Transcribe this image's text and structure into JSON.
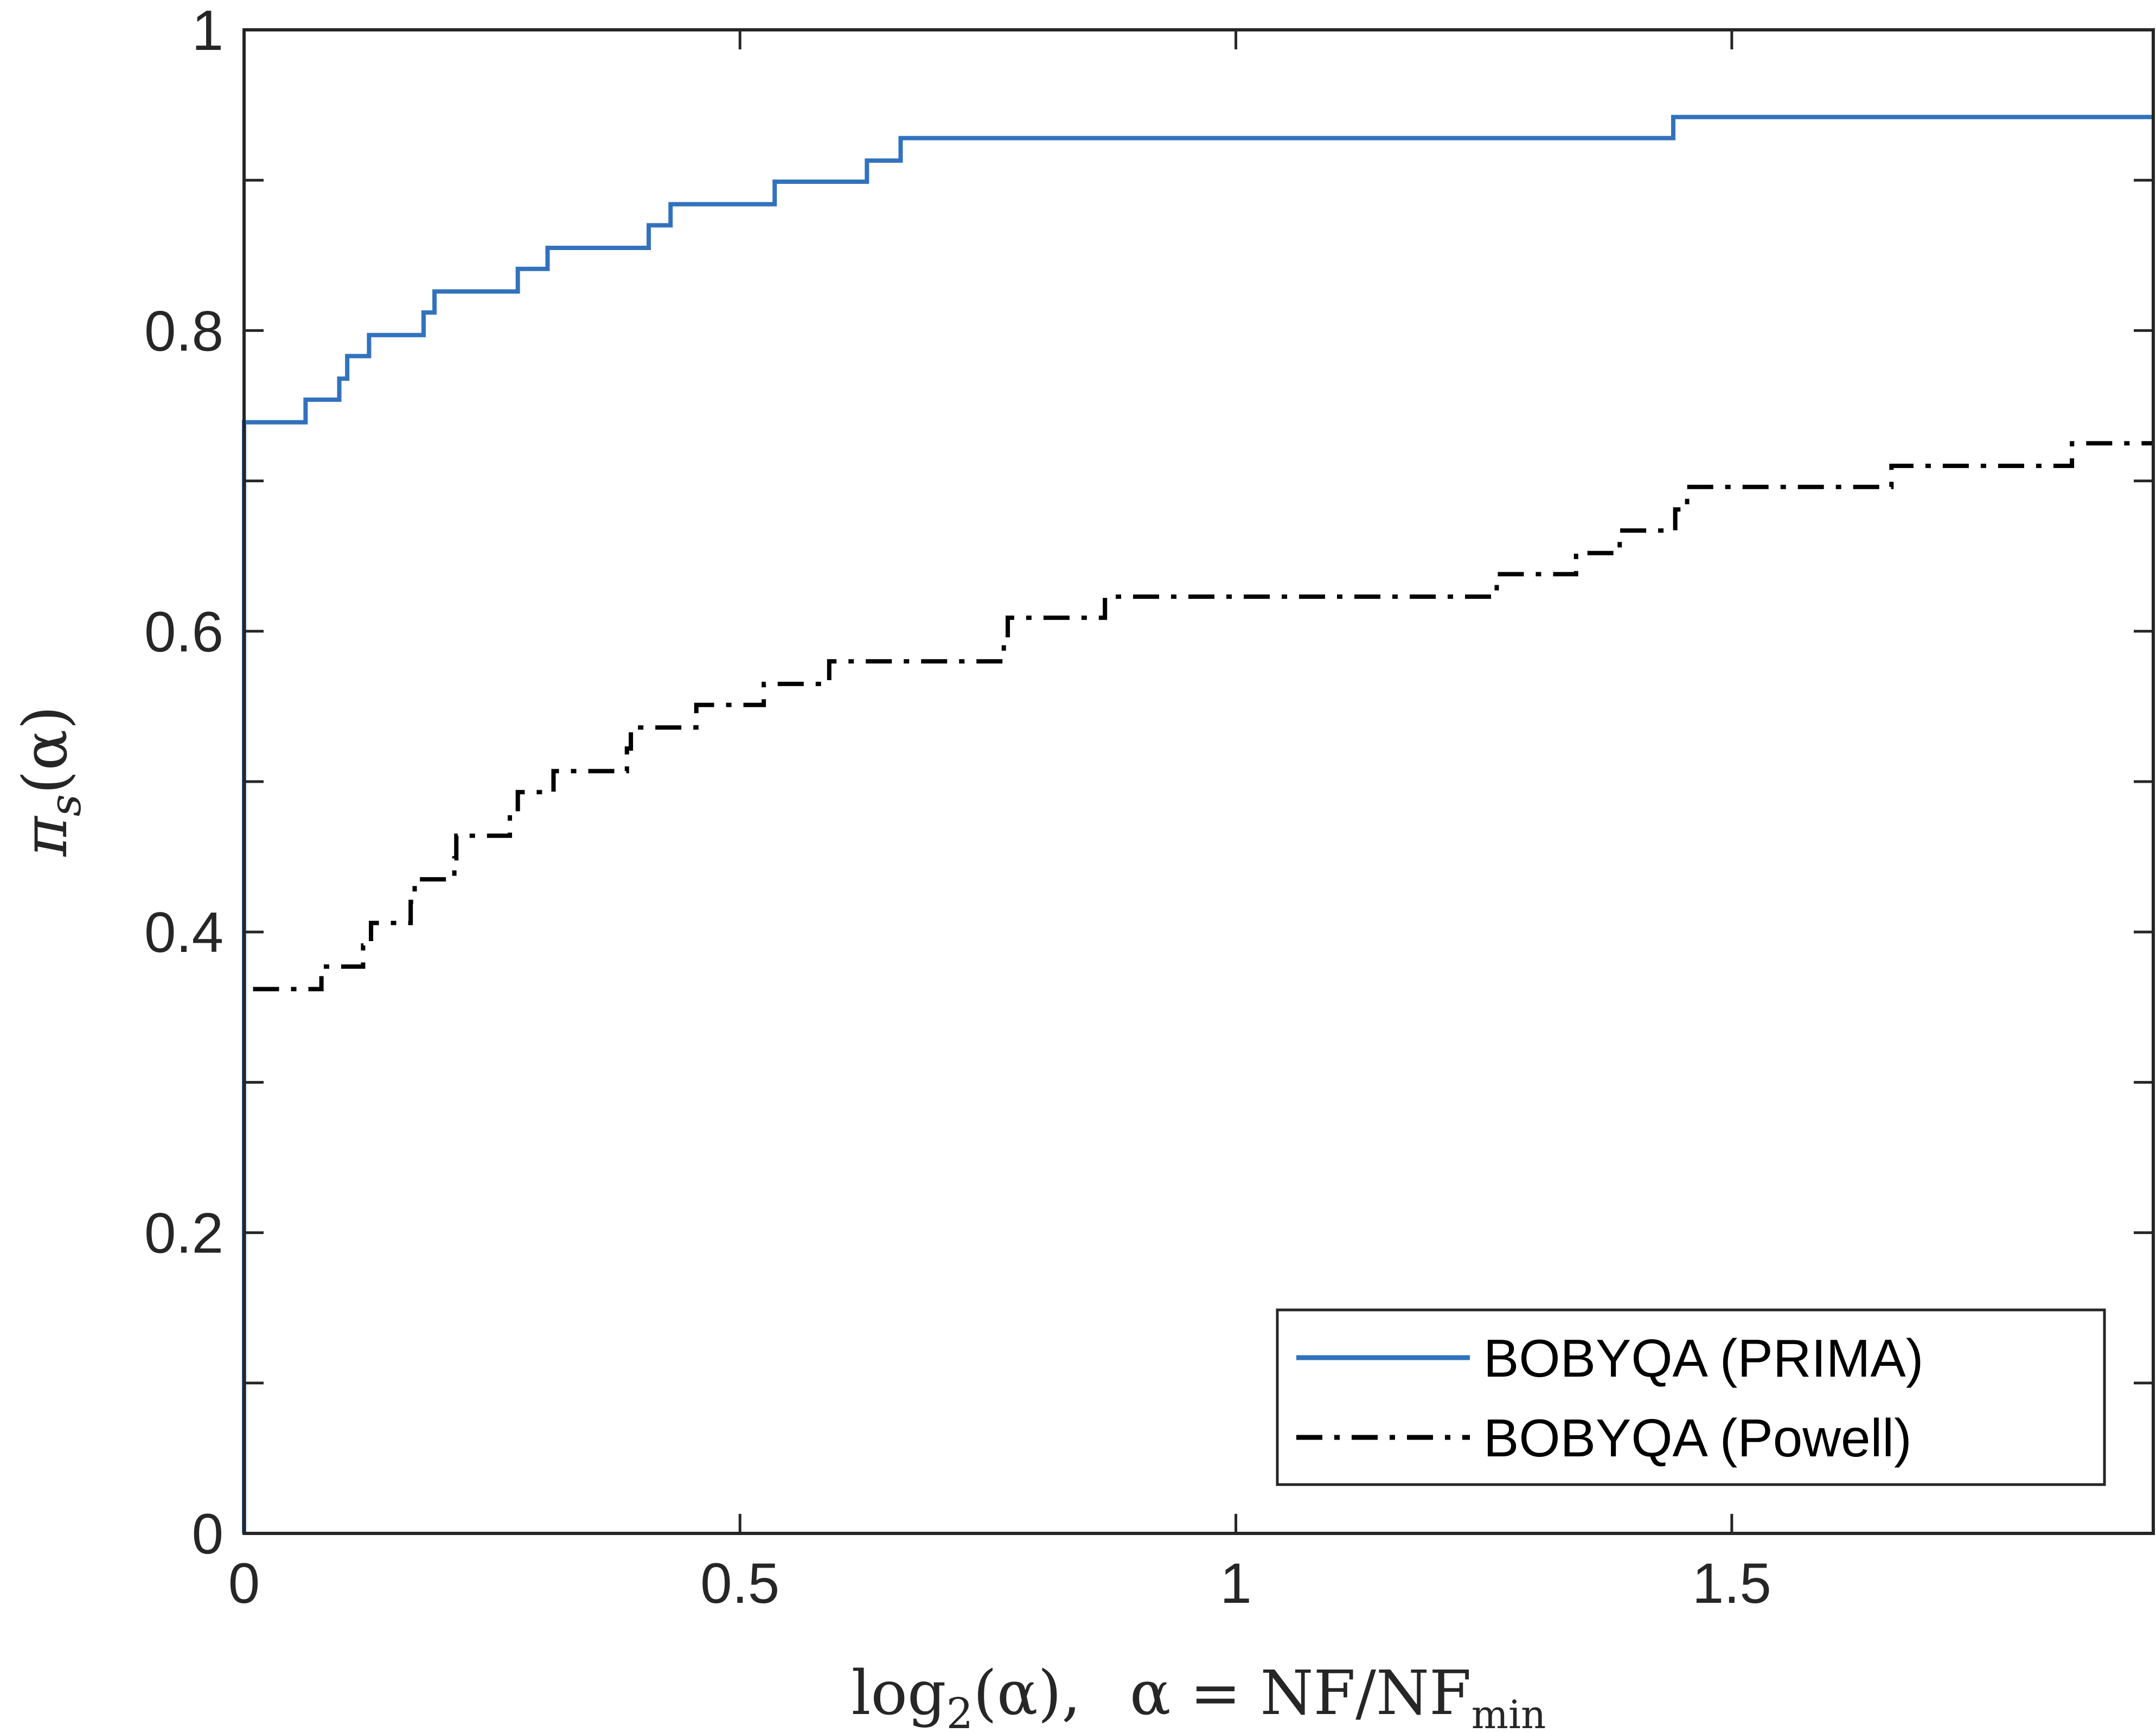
{
  "chart_data": {
    "type": "line",
    "xlabel": "log₂(α),    α = NF/NF_min",
    "xlabel_parts": {
      "log": "log",
      "log_sub": "2",
      "arg": "(α),",
      "alpha_eq": "α = NF/NF",
      "min_sub": "min"
    },
    "ylabel": "π_s(α)",
    "ylabel_parts": {
      "pi": "π",
      "sub": "s",
      "arg": "(α)"
    },
    "xlim": [
      0,
      1.925
    ],
    "ylim": [
      0,
      1
    ],
    "x_ticks": [
      {
        "value": 0,
        "label": "0"
      },
      {
        "value": 0.5,
        "label": "0.5"
      },
      {
        "value": 1,
        "label": "1"
      },
      {
        "value": 1.5,
        "label": "1.5"
      }
    ],
    "y_ticks": [
      {
        "value": 0,
        "label": "0"
      },
      {
        "value": 0.1,
        "label": ""
      },
      {
        "value": 0.2,
        "label": "0.2"
      },
      {
        "value": 0.3,
        "label": ""
      },
      {
        "value": 0.4,
        "label": "0.4"
      },
      {
        "value": 0.5,
        "label": ""
      },
      {
        "value": 0.6,
        "label": "0.6"
      },
      {
        "value": 0.7,
        "label": ""
      },
      {
        "value": 0.8,
        "label": "0.8"
      },
      {
        "value": 0.9,
        "label": ""
      },
      {
        "value": 1,
        "label": "1"
      }
    ],
    "grid": false,
    "legend_position": "bottom-right",
    "series": [
      {
        "name": "BOBYQA (PRIMA)",
        "color": "#3272bd",
        "style": "solid",
        "steps": [
          [
            0,
            0.739
          ],
          [
            0.062,
            0.754
          ],
          [
            0.096,
            0.768
          ],
          [
            0.104,
            0.783
          ],
          [
            0.126,
            0.797
          ],
          [
            0.181,
            0.812
          ],
          [
            0.192,
            0.826
          ],
          [
            0.276,
            0.841
          ],
          [
            0.306,
            0.855
          ],
          [
            0.408,
            0.87
          ],
          [
            0.43,
            0.884
          ],
          [
            0.535,
            0.899
          ],
          [
            0.628,
            0.913
          ],
          [
            0.662,
            0.928
          ],
          [
            1.441,
            0.942
          ],
          [
            1.925,
            0.942
          ]
        ]
      },
      {
        "name": "BOBYQA (Powell)",
        "color": "#000000",
        "style": "dash-dot",
        "steps": [
          [
            0,
            0.362
          ],
          [
            0.078,
            0.377
          ],
          [
            0.12,
            0.391
          ],
          [
            0.128,
            0.406
          ],
          [
            0.168,
            0.42
          ],
          [
            0.172,
            0.435
          ],
          [
            0.212,
            0.449
          ],
          [
            0.214,
            0.464
          ],
          [
            0.268,
            0.478
          ],
          [
            0.276,
            0.493
          ],
          [
            0.312,
            0.507
          ],
          [
            0.386,
            0.522
          ],
          [
            0.39,
            0.536
          ],
          [
            0.456,
            0.551
          ],
          [
            0.524,
            0.565
          ],
          [
            0.59,
            0.58
          ],
          [
            0.766,
            0.594
          ],
          [
            0.77,
            0.609
          ],
          [
            0.868,
            0.623
          ],
          [
            1.263,
            0.638
          ],
          [
            1.343,
            0.652
          ],
          [
            1.387,
            0.667
          ],
          [
            1.443,
            0.681
          ],
          [
            1.455,
            0.696
          ],
          [
            1.661,
            0.71
          ],
          [
            1.843,
            0.725
          ],
          [
            1.925,
            0.725
          ]
        ]
      }
    ]
  }
}
